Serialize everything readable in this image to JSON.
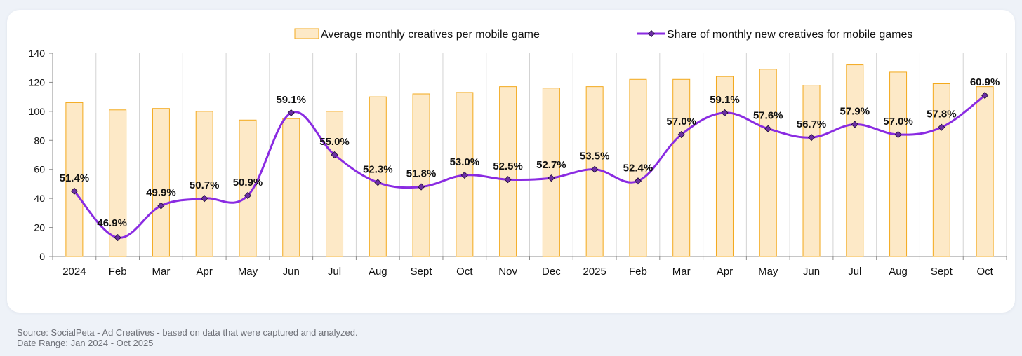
{
  "chart_data": {
    "type": "bar",
    "categories": [
      "2024",
      "Feb",
      "Mar",
      "Apr",
      "May",
      "Jun",
      "Jul",
      "Aug",
      "Sept",
      "Oct",
      "Nov",
      "Dec",
      "2025",
      "Feb",
      "Mar",
      "Apr",
      "May",
      "Jun",
      "Jul",
      "Aug",
      "Sept",
      "Oct"
    ],
    "series": [
      {
        "name": "Average monthly creatives per mobile game",
        "kind": "bar",
        "values": [
          106,
          101,
          102,
          100,
          94,
          95,
          100,
          110,
          112,
          113,
          117,
          116,
          117,
          122,
          122,
          124,
          129,
          118,
          132,
          127,
          119,
          117
        ]
      },
      {
        "name": "Share of monthly new creatives for mobile games",
        "kind": "line",
        "values": [
          51.4,
          46.9,
          49.9,
          50.7,
          50.9,
          59.1,
          55.0,
          52.3,
          51.8,
          53.0,
          52.5,
          52.7,
          53.5,
          52.4,
          57.0,
          59.1,
          57.6,
          56.7,
          57.9,
          57.0,
          57.8,
          60.9
        ],
        "labels": [
          "51.4%",
          "46.9%",
          "49.9%",
          "50.7%",
          "50.9%",
          "59.1%",
          "55.0%",
          "52.3%",
          "51.8%",
          "53.0%",
          "52.5%",
          "52.7%",
          "53.5%",
          "52.4%",
          "57.0%",
          "59.1%",
          "57.6%",
          "56.7%",
          "57.9%",
          "57.0%",
          "57.8%",
          "60.9%"
        ],
        "plotted_on_left_axis": [
          45,
          13,
          35,
          40,
          42,
          99,
          70,
          51,
          48,
          56,
          53,
          54,
          60,
          52,
          84,
          99,
          88,
          82,
          91,
          84,
          89,
          111
        ]
      }
    ],
    "ylim": [
      0,
      140
    ],
    "yticks": [
      0,
      20,
      40,
      60,
      80,
      100,
      120,
      140
    ],
    "grid": "vertical",
    "legend": "top-right",
    "colors": {
      "bar_fill": "#fde9c7",
      "bar_stroke": "#f3a91c",
      "line": "#8a2be2",
      "marker_fill": "#6b2fa3",
      "grid": "#d3d3d3",
      "axis": "#8c8c8c",
      "text": "#111111"
    }
  },
  "footer": {
    "source": "Source: SocialPeta - Ad Creatives - based on data that were captured and analyzed.",
    "date_range": "Date Range: Jan 2024 - Oct 2025"
  }
}
